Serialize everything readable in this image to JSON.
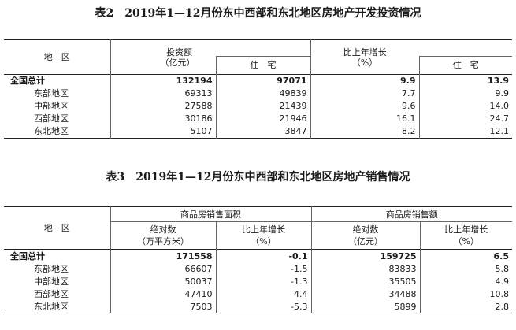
{
  "table2": {
    "title": "表2　2019年1—12月份东中西部和东北地区房地产开发投资情况",
    "headers": {
      "region": "地　区",
      "investment_l1": "投资额",
      "investment_l2": "（亿元）",
      "residential": "住　宅",
      "growth_l1": "比上年增长",
      "growth_l2": "（%）",
      "growth_residential": "住　宅"
    },
    "rows": [
      {
        "region": "全国总计",
        "investment": "132194",
        "residential": "97071",
        "growth": "9.9",
        "growth_residential": "13.9"
      },
      {
        "region": "东部地区",
        "investment": "69313",
        "residential": "49839",
        "growth": "7.7",
        "growth_residential": "9.9"
      },
      {
        "region": "中部地区",
        "investment": "27588",
        "residential": "21439",
        "growth": "9.6",
        "growth_residential": "14.0"
      },
      {
        "region": "西部地区",
        "investment": "30186",
        "residential": "21946",
        "growth": "16.1",
        "growth_residential": "24.7"
      },
      {
        "region": "东北地区",
        "investment": "5107",
        "residential": "3847",
        "growth": "8.2",
        "growth_residential": "12.1"
      }
    ]
  },
  "table3": {
    "title": "表3　2019年1—12月份东中西部和东北地区房地产销售情况",
    "headers": {
      "region": "地　区",
      "area_group": "商品房销售面积",
      "sales_group": "商品房销售额",
      "area_abs_l1": "绝对数",
      "area_abs_l2": "（万平方米）",
      "area_growth_l1": "比上年增长",
      "area_growth_l2": "（%）",
      "sales_abs_l1": "绝对数",
      "sales_abs_l2": "（亿元）",
      "sales_growth_l1": "比上年增长",
      "sales_growth_l2": "（%）"
    },
    "rows": [
      {
        "region": "全国总计",
        "area": "171558",
        "area_growth": "-0.1",
        "sales": "159725",
        "sales_growth": "6.5"
      },
      {
        "region": "东部地区",
        "area": "66607",
        "area_growth": "-1.5",
        "sales": "83833",
        "sales_growth": "5.8"
      },
      {
        "region": "中部地区",
        "area": "50037",
        "area_growth": "-1.3",
        "sales": "35505",
        "sales_growth": "4.9"
      },
      {
        "region": "西部地区",
        "area": "47410",
        "area_growth": "4.4",
        "sales": "34488",
        "sales_growth": "10.8"
      },
      {
        "region": "东北地区",
        "area": "7503",
        "area_growth": "-5.3",
        "sales": "5899",
        "sales_growth": "2.8"
      }
    ]
  }
}
